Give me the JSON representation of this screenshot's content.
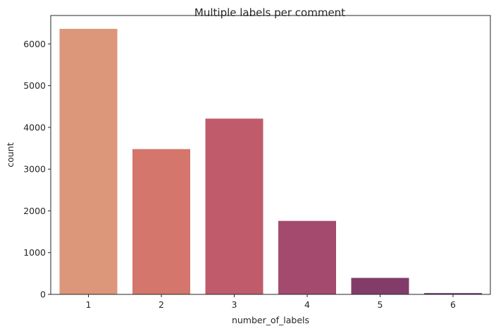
{
  "chart_data": {
    "type": "bar",
    "title": "Multiple labels per comment",
    "xlabel": "number_of_labels",
    "ylabel": "count",
    "categories": [
      "1",
      "2",
      "3",
      "4",
      "5",
      "6"
    ],
    "values": [
      6360,
      3480,
      4210,
      1760,
      395,
      30
    ],
    "colors": [
      "#dc967a",
      "#d4766b",
      "#c05b6c",
      "#a34a6e",
      "#823c6a",
      "#5c2f5f"
    ],
    "ylim": [
      0,
      6680
    ],
    "yticks": [
      0,
      1000,
      2000,
      3000,
      4000,
      5000,
      6000
    ],
    "yticks_labels": [
      "0",
      "1000",
      "2000",
      "3000",
      "4000",
      "5000",
      "6000"
    ],
    "grid": false,
    "legend": "none"
  }
}
